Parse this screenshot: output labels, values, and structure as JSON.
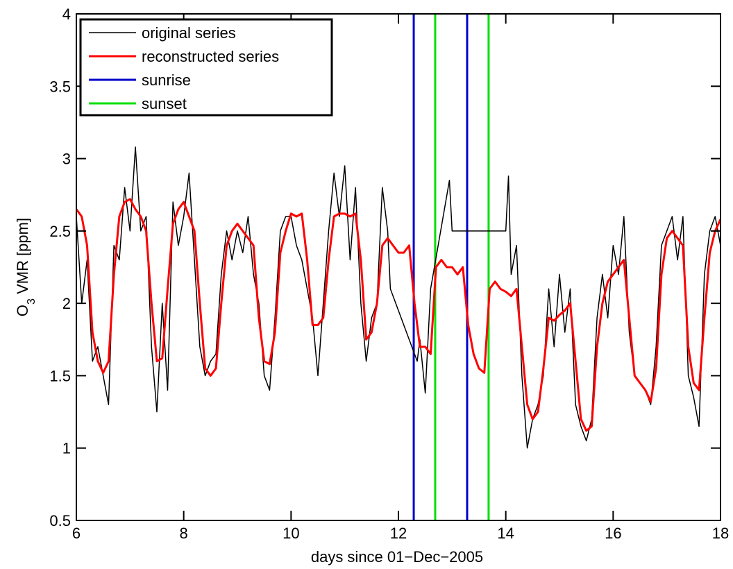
{
  "chart_data": {
    "type": "line",
    "xlabel": "days since 01−Dec−2005",
    "ylabel": {
      "main": "O",
      "sub": "3",
      "rest": " VMR [ppm]"
    },
    "xlim": [
      6,
      18
    ],
    "ylim": [
      0.5,
      4
    ],
    "xticks": [
      6,
      8,
      10,
      12,
      14,
      16,
      18
    ],
    "yticks": [
      0.5,
      1,
      1.5,
      2,
      2.5,
      3,
      3.5,
      4
    ],
    "legend": "upper left",
    "series": [
      {
        "name": "original series",
        "color": "#000000",
        "x": [
          6.0,
          6.1,
          6.2,
          6.3,
          6.4,
          6.5,
          6.6,
          6.7,
          6.8,
          6.9,
          7.0,
          7.1,
          7.2,
          7.3,
          7.4,
          7.5,
          7.6,
          7.7,
          7.8,
          7.9,
          8.0,
          8.1,
          8.2,
          8.3,
          8.4,
          8.5,
          8.6,
          8.7,
          8.8,
          8.9,
          9.0,
          9.1,
          9.2,
          9.3,
          9.4,
          9.5,
          9.6,
          9.7,
          9.8,
          9.9,
          10.0,
          10.1,
          10.2,
          10.3,
          10.4,
          10.5,
          10.6,
          10.7,
          10.8,
          10.9,
          11.0,
          11.1,
          11.2,
          11.3,
          11.4,
          11.5,
          11.6,
          11.7,
          11.8,
          11.85,
          12.3,
          12.35,
          12.4,
          12.5,
          12.6,
          12.95,
          13.0,
          14.0,
          14.05,
          14.1,
          14.2,
          14.3,
          14.4,
          14.5,
          14.6,
          14.7,
          14.8,
          14.9,
          15.0,
          15.1,
          15.2,
          15.3,
          15.4,
          15.5,
          15.6,
          15.7,
          15.8,
          15.9,
          16.0,
          16.1,
          16.2,
          16.3,
          16.4,
          16.5,
          16.6,
          16.7,
          16.8,
          16.9,
          17.0,
          17.1,
          17.2,
          17.3,
          17.4,
          17.5,
          17.6,
          17.7,
          17.8,
          17.9,
          18.0
        ],
        "values": [
          2.6,
          2.0,
          2.3,
          1.6,
          1.7,
          1.5,
          1.3,
          2.4,
          2.3,
          2.8,
          2.5,
          3.08,
          2.5,
          2.6,
          1.7,
          1.25,
          2.0,
          1.4,
          2.7,
          2.4,
          2.6,
          2.9,
          2.3,
          1.7,
          1.5,
          1.6,
          1.65,
          2.2,
          2.5,
          2.3,
          2.5,
          2.35,
          2.6,
          2.2,
          2.0,
          1.5,
          1.4,
          1.9,
          2.5,
          2.6,
          2.6,
          2.4,
          2.3,
          2.1,
          1.9,
          1.5,
          2.0,
          2.5,
          2.9,
          2.6,
          2.95,
          2.3,
          2.8,
          2.0,
          1.6,
          1.9,
          2.0,
          2.8,
          2.5,
          2.1,
          1.65,
          1.6,
          1.75,
          1.38,
          2.1,
          2.85,
          2.5,
          2.5,
          2.88,
          2.2,
          2.4,
          1.5,
          1.0,
          1.2,
          1.3,
          1.5,
          2.1,
          1.7,
          2.2,
          1.8,
          2.1,
          1.3,
          1.15,
          1.05,
          1.2,
          1.9,
          2.2,
          1.9,
          2.4,
          2.2,
          2.6,
          1.8,
          1.5,
          1.45,
          1.4,
          1.3,
          1.7,
          2.4,
          2.5,
          2.6,
          2.3,
          2.6,
          1.5,
          1.35,
          1.15,
          2.2,
          2.5,
          2.6,
          2.4
        ]
      },
      {
        "name": "reconstructed series",
        "color": "#ff0000",
        "x": [
          6.0,
          6.1,
          6.2,
          6.3,
          6.4,
          6.5,
          6.6,
          6.7,
          6.8,
          6.9,
          7.0,
          7.1,
          7.2,
          7.3,
          7.4,
          7.5,
          7.6,
          7.7,
          7.8,
          7.9,
          8.0,
          8.1,
          8.2,
          8.3,
          8.4,
          8.5,
          8.6,
          8.7,
          8.8,
          8.9,
          9.0,
          9.1,
          9.2,
          9.3,
          9.4,
          9.5,
          9.6,
          9.7,
          9.8,
          9.9,
          10.0,
          10.1,
          10.2,
          10.3,
          10.4,
          10.5,
          10.6,
          10.7,
          10.8,
          10.9,
          11.0,
          11.1,
          11.2,
          11.3,
          11.4,
          11.5,
          11.6,
          11.7,
          11.8,
          11.9,
          12.0,
          12.1,
          12.2,
          12.3,
          12.4,
          12.5,
          12.6,
          12.7,
          12.8,
          12.9,
          13.0,
          13.1,
          13.2,
          13.3,
          13.4,
          13.5,
          13.6,
          13.7,
          13.8,
          13.9,
          14.0,
          14.1,
          14.2,
          14.3,
          14.4,
          14.5,
          14.6,
          14.7,
          14.8,
          14.9,
          15.0,
          15.1,
          15.2,
          15.3,
          15.4,
          15.5,
          15.6,
          15.7,
          15.8,
          15.9,
          16.0,
          16.1,
          16.2,
          16.3,
          16.4,
          16.5,
          16.6,
          16.7,
          16.8,
          16.9,
          17.0,
          17.1,
          17.2,
          17.3,
          17.4,
          17.5,
          17.6,
          17.7,
          17.8,
          17.9,
          18.0
        ],
        "values": [
          2.65,
          2.6,
          2.4,
          1.8,
          1.6,
          1.52,
          1.6,
          2.2,
          2.6,
          2.7,
          2.72,
          2.65,
          2.6,
          2.5,
          2.0,
          1.6,
          1.62,
          2.1,
          2.55,
          2.65,
          2.7,
          2.6,
          2.5,
          2.0,
          1.55,
          1.5,
          1.55,
          2.0,
          2.4,
          2.5,
          2.55,
          2.5,
          2.45,
          2.4,
          1.9,
          1.6,
          1.58,
          1.8,
          2.35,
          2.5,
          2.62,
          2.6,
          2.62,
          2.3,
          1.85,
          1.85,
          1.9,
          2.3,
          2.6,
          2.62,
          2.62,
          2.6,
          2.62,
          2.3,
          1.75,
          1.8,
          2.0,
          2.4,
          2.45,
          2.4,
          2.35,
          2.35,
          2.4,
          2.0,
          1.7,
          1.7,
          1.65,
          2.25,
          2.3,
          2.25,
          2.25,
          2.2,
          2.25,
          1.85,
          1.65,
          1.55,
          1.52,
          2.1,
          2.15,
          2.1,
          2.08,
          2.05,
          2.1,
          1.7,
          1.3,
          1.2,
          1.25,
          1.55,
          1.9,
          1.88,
          1.92,
          1.95,
          2.0,
          1.6,
          1.2,
          1.12,
          1.15,
          1.7,
          2.0,
          2.15,
          2.2,
          2.25,
          2.3,
          1.9,
          1.5,
          1.45,
          1.4,
          1.32,
          1.55,
          2.2,
          2.45,
          2.5,
          2.45,
          2.4,
          1.7,
          1.45,
          1.4,
          1.9,
          2.35,
          2.5,
          2.58
        ]
      },
      {
        "name": "sunrise",
        "color": "#0000cc",
        "x": [
          12.285,
          13.28
        ]
      },
      {
        "name": "sunset",
        "color": "#00e000",
        "x": [
          12.685,
          13.68
        ]
      }
    ]
  }
}
